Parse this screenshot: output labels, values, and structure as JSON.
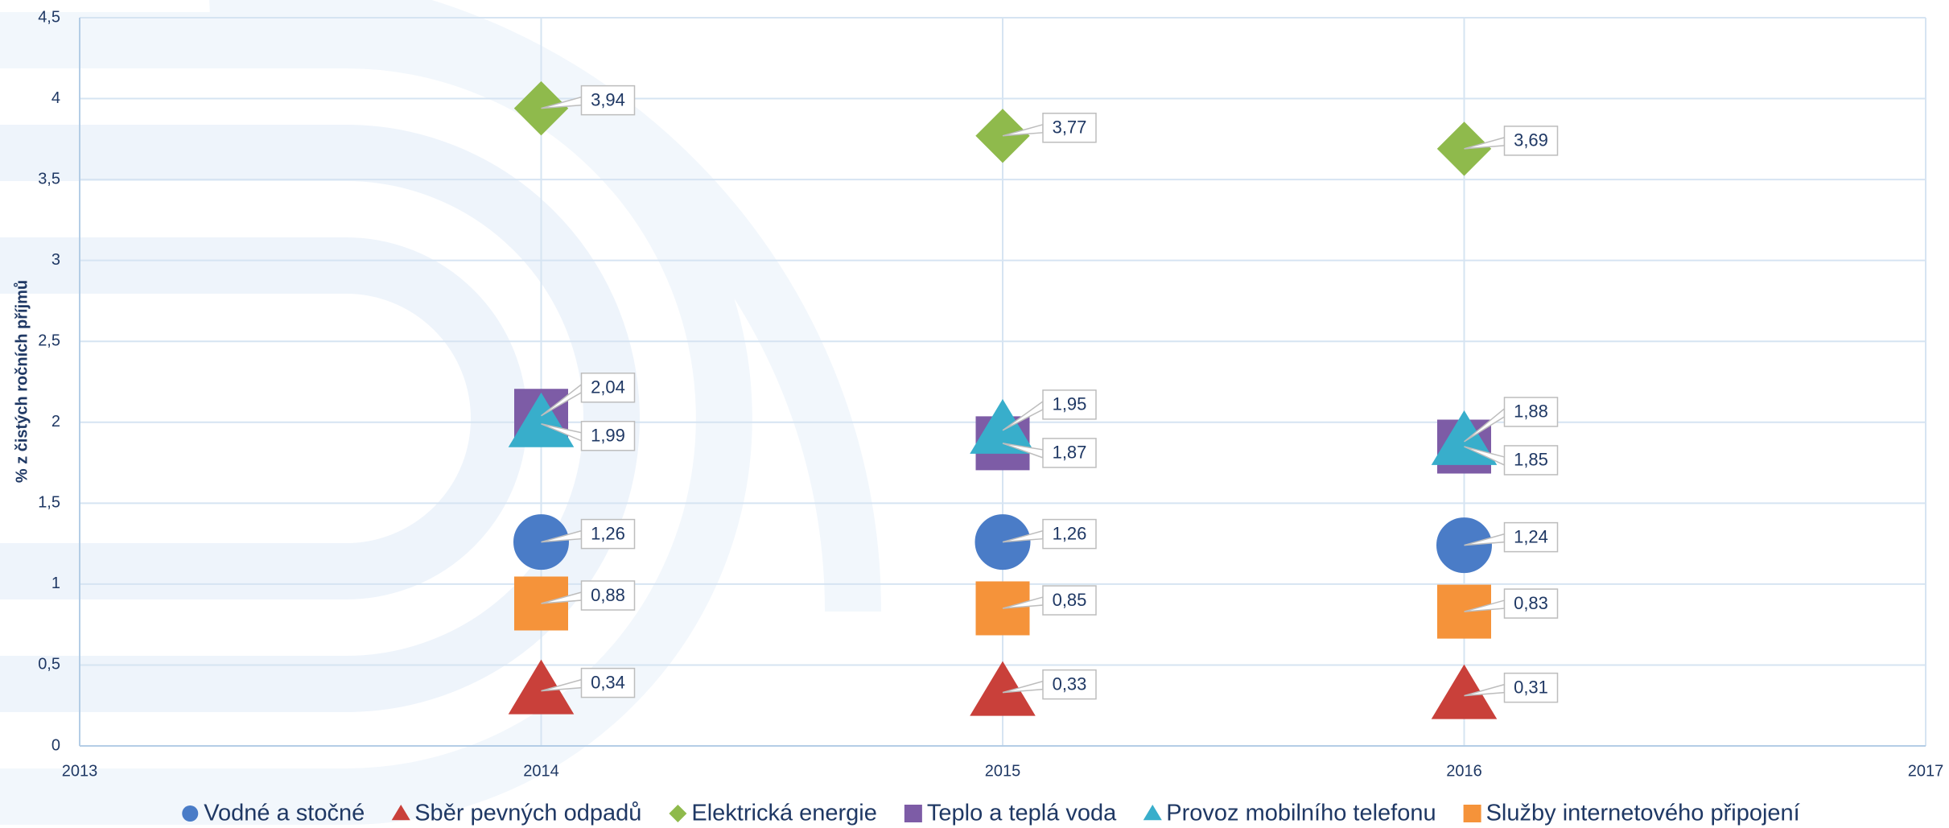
{
  "chart_data": {
    "type": "scatter",
    "y_label": "% z čistých ročních příjmů",
    "xlim": [
      2013,
      2017
    ],
    "xticks": [
      2013,
      2014,
      2015,
      2016,
      2017
    ],
    "ylim": [
      0,
      4.5
    ],
    "yticks": [
      0,
      {
        "value": 0.5,
        "label": "0,5"
      },
      1,
      {
        "value": 1.5,
        "label": "1,5"
      },
      2,
      {
        "value": 2.5,
        "label": "2,5"
      },
      3,
      {
        "value": 3.5,
        "label": "3,5"
      },
      4,
      {
        "value": 4.5,
        "label": "4,5"
      }
    ],
    "grid": true,
    "legend": "bottom",
    "x": [
      2014,
      2015,
      2016
    ],
    "series": [
      {
        "name": "Vodné a stočné",
        "color": "#4a7cc7",
        "marker": "circle",
        "values": [
          1.26,
          1.26,
          1.24
        ],
        "value_labels": [
          "1,26",
          "1,26",
          "1,24"
        ]
      },
      {
        "name": "Sběr pevných odpadů",
        "color": "#c9403a",
        "marker": "triangle",
        "values": [
          0.34,
          0.33,
          0.31
        ],
        "value_labels": [
          "0,34",
          "0,33",
          "0,31"
        ]
      },
      {
        "name": "Elektrická energie",
        "color": "#8fba4c",
        "marker": "diamond",
        "values": [
          3.94,
          3.77,
          3.69
        ],
        "value_labels": [
          "3,94",
          "3,77",
          "3,69"
        ]
      },
      {
        "name": "Teplo a teplá voda",
        "color": "#7d5ca6",
        "marker": "square",
        "values": [
          2.04,
          1.87,
          1.85
        ],
        "value_labels": [
          "2,04",
          "1,87",
          "1,85"
        ]
      },
      {
        "name": "Provoz mobilního telefonu",
        "color": "#38aecb",
        "marker": "triangle",
        "values": [
          1.99,
          1.95,
          1.88
        ],
        "value_labels": [
          "1,99",
          "1,95",
          "1,88"
        ]
      },
      {
        "name": "Služby internetového připojení",
        "color": "#f5933a",
        "marker": "square",
        "values": [
          0.88,
          0.85,
          0.83
        ],
        "value_labels": [
          "0,88",
          "0,85",
          "0,83"
        ]
      }
    ]
  }
}
